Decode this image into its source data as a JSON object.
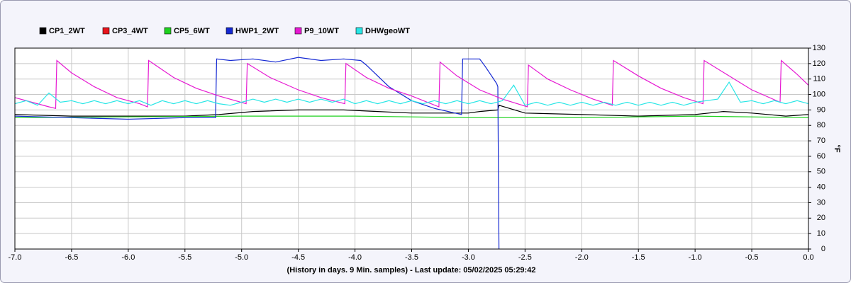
{
  "chart_data": {
    "type": "line",
    "xlabel": "(History in days. 9 Min. samples) - Last update: 05/02/2025 05:29:42",
    "ylabel": "°F",
    "xlim": [
      -7,
      0
    ],
    "xticks": [
      {
        "value": -7,
        "label": "-7.0"
      },
      -6.5,
      {
        "value": -6,
        "label": "-6.0"
      },
      -5.5,
      {
        "value": -5,
        "label": "-5.0"
      },
      -4.5,
      {
        "value": -4,
        "label": "-4.0"
      },
      -3.5,
      {
        "value": -3,
        "label": "-3.0"
      },
      -2.5,
      {
        "value": -2,
        "label": "-2.0"
      },
      -1.5,
      {
        "value": -1,
        "label": "-1.0"
      },
      -0.5,
      {
        "value": 0,
        "label": "0.0"
      }
    ],
    "ylim": [
      0,
      130
    ],
    "yticks": [
      0,
      10,
      20,
      30,
      40,
      50,
      60,
      70,
      80,
      90,
      100,
      110,
      120,
      130
    ],
    "grid": true,
    "series": [
      {
        "name": "CP1_2WT",
        "color": "#000000",
        "x": [
          -7,
          -6.5,
          -6,
          -5.5,
          -5.2,
          -4.9,
          -4.5,
          -4.1,
          -3.8,
          -3.5,
          -3.0,
          -2.9,
          -2.74,
          -2.73,
          -2.5,
          -2,
          -1.5,
          -1.0,
          -0.75,
          -0.5,
          -0.2,
          0
        ],
        "values": [
          87,
          86,
          86,
          86,
          87,
          89,
          90,
          90,
          89,
          88,
          88,
          89,
          90,
          93,
          88,
          87,
          86,
          87,
          89,
          88,
          86,
          87
        ]
      },
      {
        "name": "CP3_4WT",
        "color": "#e8141c",
        "x": [
          -7,
          0
        ],
        "values": [
          null,
          null
        ]
      },
      {
        "name": "CP5_6WT",
        "color": "#1ed21e",
        "x": [
          -7,
          -5,
          -4,
          -3,
          -2,
          -1,
          0
        ],
        "values": [
          85,
          86,
          86,
          85,
          85,
          86,
          85
        ]
      },
      {
        "name": "HWP1_2WT",
        "color": "#1428d2",
        "x": [
          -7,
          -6.5,
          -6,
          -5.5,
          -5.23,
          -5.22,
          -5.1,
          -4.9,
          -4.7,
          -4.5,
          -4.3,
          -4.1,
          -3.95,
          -3.9,
          -3.7,
          -3.5,
          -3.3,
          -3.06,
          -3.05,
          -2.9,
          -2.85,
          -2.75,
          -2.74,
          -2.73
        ],
        "values": [
          86,
          85,
          84,
          85,
          85,
          123,
          122,
          123,
          121,
          124,
          122,
          123,
          122,
          119,
          105,
          96,
          91,
          87,
          123,
          123,
          118,
          107,
          105,
          0
        ]
      },
      {
        "name": "P9_10WT",
        "color": "#e619d2",
        "x": [
          -7,
          -6.85,
          -6.7,
          -6.64,
          -6.63,
          -6.5,
          -6.3,
          -6.1,
          -5.9,
          -5.83,
          -5.82,
          -5.6,
          -5.4,
          -5.2,
          -4.96,
          -4.95,
          -4.75,
          -4.5,
          -4.3,
          -4.09,
          -4.08,
          -3.9,
          -3.7,
          -3.5,
          -3.26,
          -3.25,
          -3.1,
          -2.9,
          -2.7,
          -2.48,
          -2.47,
          -2.3,
          -2.1,
          -1.9,
          -1.73,
          -1.72,
          -1.5,
          -1.3,
          -1.1,
          -0.93,
          -0.92,
          -0.7,
          -0.5,
          -0.25,
          -0.24,
          -0.1,
          0
        ],
        "values": [
          98,
          95,
          92,
          91,
          122,
          114,
          105,
          98,
          94,
          92,
          122,
          111,
          104,
          99,
          94,
          120,
          111,
          103,
          98,
          94,
          120,
          111,
          104,
          99,
          92,
          121,
          112,
          103,
          97,
          92,
          119,
          110,
          103,
          97,
          93,
          122,
          112,
          104,
          98,
          94,
          122,
          112,
          103,
          95,
          122,
          113,
          106
        ]
      },
      {
        "name": "DHWgeoWT",
        "color": "#28e6e6",
        "x": [
          -7,
          -6.9,
          -6.8,
          -6.7,
          -6.6,
          -6.5,
          -6.4,
          -6.3,
          -6.2,
          -6.1,
          -6,
          -5.9,
          -5.8,
          -5.7,
          -5.6,
          -5.5,
          -5.4,
          -5.3,
          -5.2,
          -5.1,
          -5,
          -4.9,
          -4.8,
          -4.7,
          -4.6,
          -4.5,
          -4.4,
          -4.3,
          -4.2,
          -4.1,
          -4,
          -3.9,
          -3.8,
          -3.7,
          -3.6,
          -3.5,
          -3.4,
          -3.3,
          -3.2,
          -3.1,
          -3,
          -2.9,
          -2.8,
          -2.7,
          -2.6,
          -2.5,
          -2.4,
          -2.3,
          -2.2,
          -2.1,
          -2,
          -1.9,
          -1.8,
          -1.7,
          -1.6,
          -1.5,
          -1.4,
          -1.3,
          -1.2,
          -1.1,
          -1,
          -0.9,
          -0.8,
          -0.7,
          -0.6,
          -0.5,
          -0.4,
          -0.3,
          -0.2,
          -0.1,
          0
        ],
        "values": [
          94,
          96,
          93,
          101,
          95,
          96,
          94,
          96,
          94,
          96,
          94,
          96,
          93,
          96,
          94,
          96,
          94,
          96,
          94,
          93,
          95,
          97,
          95,
          97,
          95,
          97,
          95,
          97,
          95,
          97,
          94,
          96,
          94,
          96,
          94,
          96,
          94,
          96,
          94,
          96,
          94,
          96,
          94,
          96,
          106,
          93,
          95,
          93,
          95,
          93,
          95,
          93,
          95,
          93,
          95,
          93,
          95,
          93,
          95,
          93,
          95,
          96,
          97,
          108,
          95,
          96,
          94,
          96,
          94,
          96,
          94
        ]
      }
    ]
  }
}
